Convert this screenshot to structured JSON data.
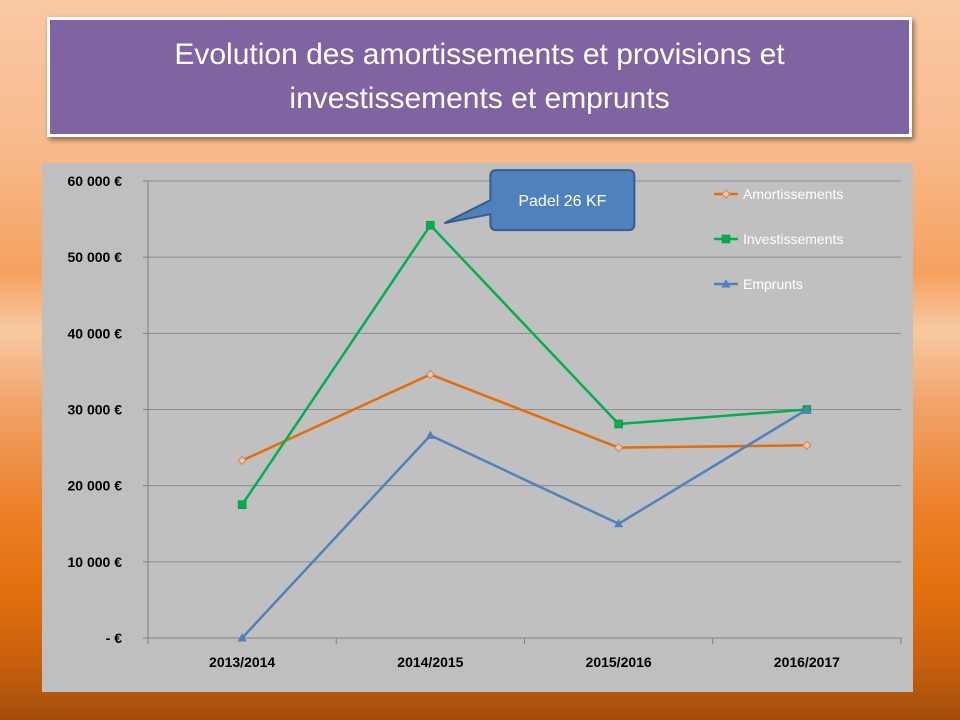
{
  "slide": {
    "title_line1": "Evolution des amortissements et provisions et",
    "title_line2": "investissements  et emprunts"
  },
  "chart_data": {
    "type": "line",
    "categories": [
      "2013/2014",
      "2014/2015",
      "2015/2016",
      "2016/2017"
    ],
    "ylim": [
      0,
      60000
    ],
    "yticks": [
      0,
      10000,
      20000,
      30000,
      40000,
      50000,
      60000
    ],
    "ytick_labels": [
      "-   €",
      "10 000 €",
      "20 000 €",
      "30 000 €",
      "40 000 €",
      "50 000 €",
      "60 000 €"
    ],
    "grid": true,
    "legend_position": "top-right",
    "series": [
      {
        "name": "Amortissements",
        "color": "#e46c0a",
        "marker": "diamond",
        "values": [
          23300,
          34600,
          25000,
          25300
        ]
      },
      {
        "name": "Investissements",
        "color": "#00b050",
        "marker": "square",
        "values": [
          17500,
          54200,
          28100,
          30000
        ]
      },
      {
        "name": "Emprunts",
        "color": "#4f81bd",
        "marker": "triangle",
        "values": [
          0,
          26600,
          15000,
          30000
        ]
      }
    ],
    "annotations": [
      {
        "text": "Padel 26 KF",
        "series": "Investissements",
        "category": "2014/2015"
      }
    ]
  }
}
